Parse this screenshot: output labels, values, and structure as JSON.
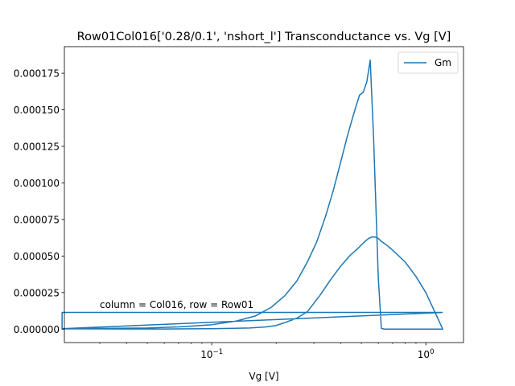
{
  "chart_data": {
    "type": "line",
    "title": "Row01Col016['0.28/0.1', 'nshort_l'] Transconductance vs. Vg [V]",
    "xlabel": "Vg [V]",
    "ylabel": "",
    "xscale": "log",
    "xlim": [
      0.0205,
      1.5
    ],
    "ylim": [
      -9.2e-06,
      0.0001932
    ],
    "grid": false,
    "legend": "top-right",
    "x_ticks": [
      {
        "value": 0.1,
        "base": "10",
        "exp": "−1"
      },
      {
        "value": 1.0,
        "base": "10",
        "exp": "0"
      }
    ],
    "y_ticks": [
      {
        "value": 0,
        "label": "0.000000"
      },
      {
        "value": 2.5e-05,
        "label": "0.000025"
      },
      {
        "value": 5e-05,
        "label": "0.000050"
      },
      {
        "value": 7.5e-05,
        "label": "0.000075"
      },
      {
        "value": 0.0001,
        "label": "0.000100"
      },
      {
        "value": 0.000125,
        "label": "0.000125"
      },
      {
        "value": 0.00015,
        "label": "0.000150"
      },
      {
        "value": 0.000175,
        "label": "0.000175"
      }
    ],
    "annotation": {
      "text": "column = Col016, row = Row01",
      "x": 0.03,
      "y": 1.44e-05
    },
    "series": [
      {
        "name": "Gm",
        "color": "#1f77b4",
        "x": [
          1.2,
          0.02,
          0.03,
          0.05,
          0.07,
          0.1,
          0.13,
          0.16,
          0.19,
          0.22,
          0.25,
          0.28,
          0.31,
          0.34,
          0.37,
          0.4,
          0.43,
          0.46,
          0.49,
          0.51,
          0.53,
          0.55,
          0.57,
          0.6,
          0.62,
          0.64,
          0.66,
          0.68,
          0.7,
          0.75,
          0.8,
          0.9,
          1.0,
          1.1,
          1.2,
          1.1,
          1.0,
          0.9,
          0.8,
          0.7,
          0.65,
          0.62,
          0.6,
          0.58,
          0.56,
          0.54,
          0.52,
          0.48,
          0.44,
          0.4,
          0.36,
          0.32,
          0.28,
          0.25,
          0.22,
          0.2,
          0.18,
          0.15,
          0.12,
          0.1,
          0.08,
          0.06,
          0.04,
          0.02,
          0.02,
          1.2
        ],
        "y": [
          1.14e-05,
          3e-07,
          5e-07,
          8e-07,
          1.5e-06,
          3e-06,
          5.5e-06,
          9e-06,
          1.5e-05,
          2.3e-05,
          3.3e-05,
          4.6e-05,
          6e-05,
          7.7e-05,
          9.5e-05,
          0.000114,
          0.000132,
          0.000147,
          0.00016,
          0.000162,
          0.000169,
          0.000184,
          0.000132,
          3.5e-05,
          5e-07,
          0.0,
          0.0,
          0.0,
          0.0,
          0.0,
          0.0,
          0.0,
          0.0,
          0.0,
          0.0,
          1.2e-05,
          2.5e-05,
          3.6e-05,
          4.6e-05,
          5.4e-05,
          5.8e-05,
          6e-05,
          6.2e-05,
          6.3e-05,
          6.3e-05,
          6.2e-05,
          6e-05,
          5.5e-05,
          5e-05,
          4.3e-05,
          3.4e-05,
          2.3e-05,
          1.2e-05,
          7.5e-06,
          4.5e-06,
          2.5e-06,
          1.5e-06,
          8e-07,
          5e-07,
          3e-07,
          2e-07,
          1e-07,
          1e-07,
          2e-07,
          1.14e-05,
          1.14e-05
        ]
      }
    ]
  }
}
